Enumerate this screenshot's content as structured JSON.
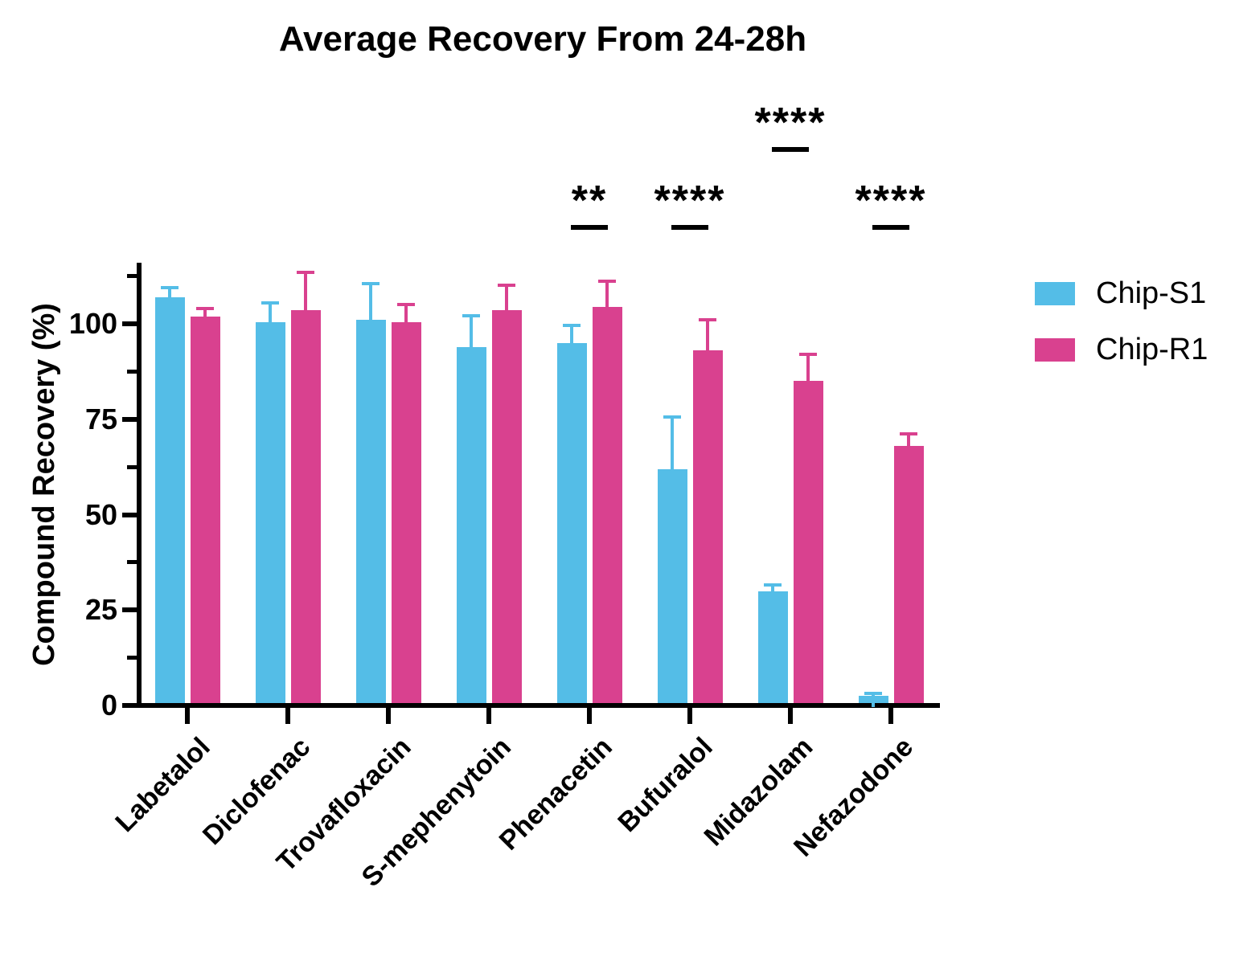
{
  "chart": {
    "title": "Average Recovery From 24-28h",
    "y_axis_label": "Compound Recovery  (%)"
  },
  "chart_data": {
    "type": "bar",
    "title": "Average Recovery From 24-28h",
    "xlabel": "",
    "ylabel": "Compound Recovery (%)",
    "ylim": [
      0,
      116
    ],
    "yticks": [
      0,
      25,
      50,
      75,
      100
    ],
    "yticks_minor": [
      12.5,
      37.5,
      62.5,
      87.5,
      112.5
    ],
    "grid": false,
    "legend_position": "right-outside",
    "categories": [
      "Labetalol",
      "Diclofenac",
      "Trovafloxacin",
      "S-mephenytoin",
      "Phenacetin",
      "Bufuralol",
      "Midazolam",
      "Nefazodone"
    ],
    "series": [
      {
        "name": "Chip-S1",
        "color": "#54BDE7",
        "values": [
          107,
          100.5,
          101,
          94,
          95,
          62,
          30,
          2.5
        ],
        "errors_upper": [
          3,
          5.5,
          10,
          8.5,
          5,
          14,
          2,
          1
        ]
      },
      {
        "name": "Chip-R1",
        "color": "#D9418F",
        "values": [
          102,
          103.5,
          100.5,
          103.5,
          104.5,
          93,
          85,
          68
        ],
        "errors_upper": [
          2.5,
          10.5,
          5,
          7,
          7,
          8.5,
          7.5,
          3.5
        ]
      }
    ],
    "significance": [
      {
        "text": "**",
        "category": "Phenacetin",
        "row": "low"
      },
      {
        "text": "****",
        "category": "Bufuralol",
        "row": "low"
      },
      {
        "text": "****",
        "category": "Midazolam",
        "row": "high"
      },
      {
        "text": "****",
        "category": "Nefazodone",
        "row": "low"
      }
    ]
  }
}
